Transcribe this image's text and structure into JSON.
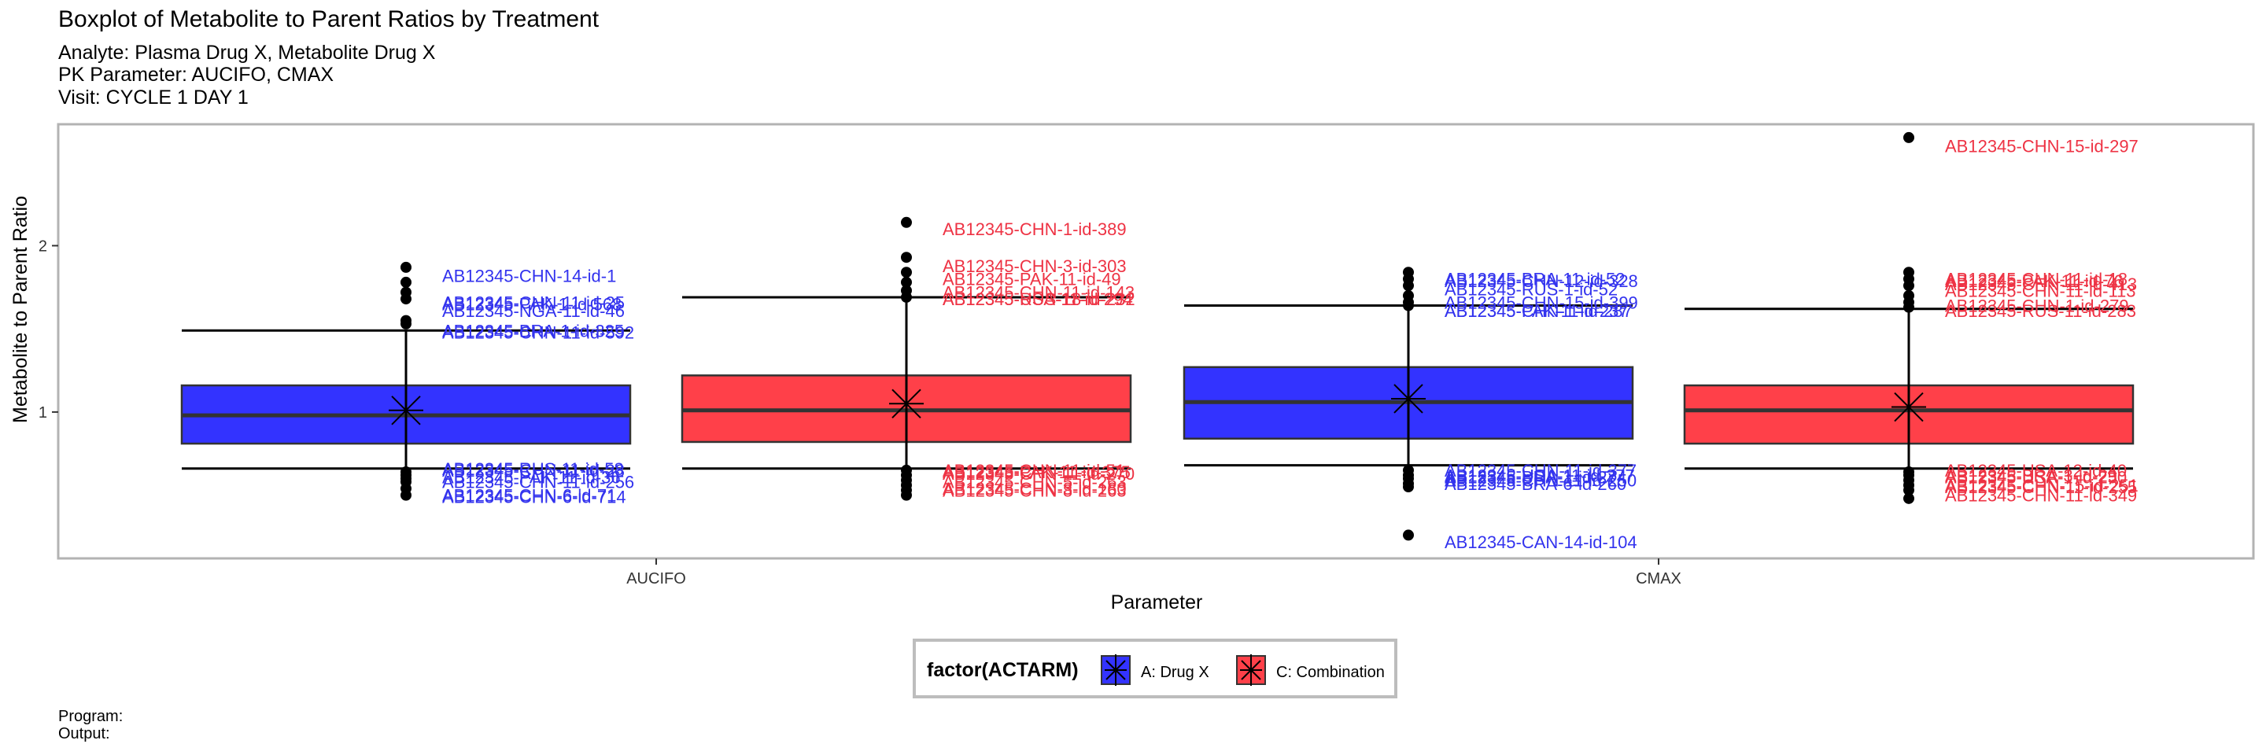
{
  "header": {
    "title": "Boxplot of Metabolite to Parent Ratios by Treatment",
    "subtitle_lines": [
      "Analyte: Plasma Drug X, Metabolite Drug X",
      "PK Parameter: AUCIFO, CMAX",
      "Visit: CYCLE 1 DAY 1"
    ]
  },
  "footer": {
    "program": "Program:",
    "output": "Output:"
  },
  "legend": {
    "title": "factor(ACTARM)",
    "entries": [
      {
        "label": "A: Drug X",
        "color": "#3333ff"
      },
      {
        "label": "C: Combination",
        "color": "#ff4049"
      }
    ]
  },
  "chart_data": {
    "type": "boxplot",
    "xlabel": "Parameter",
    "ylabel": "Metabolite to Parent Ratio",
    "categories": [
      "AUCIFO",
      "CMAX"
    ],
    "yticks": [
      1,
      2
    ],
    "ylim": [
      0.12,
      2.73
    ],
    "grid": false,
    "legend_position": "bottom",
    "colors": {
      "A: Drug X": "#3333ff",
      "C: Combination": "#ff4049",
      "label_blue": "#3333ee",
      "label_red": "#ee3344"
    },
    "boxes": [
      {
        "category": "AUCIFO",
        "series": "A: Drug X",
        "q1": 0.81,
        "median": 0.98,
        "q3": 1.16,
        "mean": 1.01,
        "whisker_low": 0.66,
        "whisker_high": 1.49,
        "outliers": [
          {
            "y": 1.87,
            "label": "AB12345-CHN-14-id-1",
            "ly": 1.82
          },
          {
            "y": 1.78,
            "label": "AB12345-CHN-11-id-25",
            "ly": 1.66
          },
          {
            "y": 1.72,
            "label": "AB12345-PAK-1-id-568",
            "ly": 1.65
          },
          {
            "y": 1.68,
            "label": "AB12345-NGA-11-id-46",
            "ly": 1.61
          },
          {
            "y": 1.55,
            "label": "AB12345-BRA-1-id-325",
            "ly": 1.49
          },
          {
            "y": 1.53,
            "label": "AB12345-CHN-11-id-592",
            "ly": 1.48
          },
          {
            "y": 0.64,
            "label": "AB12345-RUS-11-id-58",
            "ly": 0.66
          },
          {
            "y": 0.62,
            "label": "AB12345-CHN-11-id-28",
            "ly": 0.65
          },
          {
            "y": 0.6,
            "label": "AB12345-PAK-11-id-36",
            "ly": 0.61
          },
          {
            "y": 0.58,
            "label": "AB12345-CHN-11-id-256",
            "ly": 0.58
          },
          {
            "y": 0.54,
            "label": "AB12345-CHN-6-id-71",
            "ly": 0.5
          },
          {
            "y": 0.5,
            "label": "AB12345-CHN-6-id-714",
            "ly": 0.49
          }
        ]
      },
      {
        "category": "AUCIFO",
        "series": "C: Combination",
        "q1": 0.82,
        "median": 1.01,
        "q3": 1.22,
        "mean": 1.05,
        "whisker_low": 0.66,
        "whisker_high": 1.69,
        "outliers": [
          {
            "y": 2.14,
            "label": "AB12345-CHN-1-id-389",
            "ly": 2.1
          },
          {
            "y": 1.93,
            "label": "AB12345-CHN-3-id-303",
            "ly": 1.88
          },
          {
            "y": 1.84,
            "label": "AB12345-PAK-11-id-49",
            "ly": 1.8
          },
          {
            "y": 1.78,
            "label": "AB12345-CHN-11-id-143",
            "ly": 1.72
          },
          {
            "y": 1.73,
            "label": "AB12345-USA-11-id-294",
            "ly": 1.68
          },
          {
            "y": 1.69,
            "label": "AB12345-RUS-18-id-232",
            "ly": 1.68
          },
          {
            "y": 0.65,
            "label": "AB12345-CHN-11-id-51",
            "ly": 0.65
          },
          {
            "y": 0.62,
            "label": "AB12345-PAK-11-id-375",
            "ly": 0.64
          },
          {
            "y": 0.59,
            "label": "AB12345-CHN-11-id-270",
            "ly": 0.63
          },
          {
            "y": 0.56,
            "label": "AB12345-CHN-5-id-263",
            "ly": 0.58
          },
          {
            "y": 0.53,
            "label": "AB12345-CHN-3-id-160",
            "ly": 0.54
          },
          {
            "y": 0.5,
            "label": "AB12345-CHN-8-id-263",
            "ly": 0.53
          }
        ]
      },
      {
        "category": "CMAX",
        "series": "A: Drug X",
        "q1": 0.84,
        "median": 1.06,
        "q3": 1.27,
        "mean": 1.08,
        "whisker_low": 0.68,
        "whisker_high": 1.64,
        "outliers": [
          {
            "y": 1.84,
            "label": "AB12345-BRA-11-id-52",
            "ly": 1.8
          },
          {
            "y": 1.8,
            "label": "AB12345-CHN-12-id-328",
            "ly": 1.79
          },
          {
            "y": 1.76,
            "label": "AB12345-RUS-1-id-52",
            "ly": 1.74
          },
          {
            "y": 1.7,
            "label": "AB12345-CHN-15-id-399",
            "ly": 1.66
          },
          {
            "y": 1.66,
            "label": "AB12345-CHN-1-id-237",
            "ly": 1.61
          },
          {
            "y": 1.64,
            "label": "AB12345-PAK-11-id-287",
            "ly": 1.61
          },
          {
            "y": 0.65,
            "label": "AB12345-CHN-11-id-377",
            "ly": 0.65
          },
          {
            "y": 0.62,
            "label": "AB12345-USA-11-id-277",
            "ly": 0.62
          },
          {
            "y": 0.6,
            "label": "AB12345-BRA-1-id-274",
            "ly": 0.61
          },
          {
            "y": 0.57,
            "label": "AB12345-CHN-11-id-250",
            "ly": 0.59
          },
          {
            "y": 0.55,
            "label": "AB12345-BRA-6-id-260",
            "ly": 0.57
          },
          {
            "y": 0.26,
            "label": "AB12345-CAN-14-id-104",
            "ly": 0.22
          }
        ]
      },
      {
        "category": "CMAX",
        "series": "C: Combination",
        "q1": 0.81,
        "median": 1.01,
        "q3": 1.16,
        "mean": 1.03,
        "whisker_low": 0.66,
        "whisker_high": 1.62,
        "outliers": [
          {
            "y": 2.65,
            "label": "AB12345-CHN-15-id-297",
            "ly": 2.6
          },
          {
            "y": 1.84,
            "label": "AB12345-CHN-11-id-18",
            "ly": 1.8
          },
          {
            "y": 1.8,
            "label": "AB12345-PAK-11-id-76",
            "ly": 1.79
          },
          {
            "y": 1.76,
            "label": "AB12345-CHN-11-id-413",
            "ly": 1.77
          },
          {
            "y": 1.7,
            "label": "AB12345-CHN-11-id-113",
            "ly": 1.73
          },
          {
            "y": 1.66,
            "label": "AB12345-CHN-1-id-279",
            "ly": 1.64
          },
          {
            "y": 1.63,
            "label": "AB12345-RUS-11-id-283",
            "ly": 1.61
          },
          {
            "y": 0.64,
            "label": "AB12345-USA-12-id-40",
            "ly": 0.65
          },
          {
            "y": 0.62,
            "label": "AB12345-BRA-3-id-29",
            "ly": 0.62
          },
          {
            "y": 0.59,
            "label": "AB12345-USA-1-id-250",
            "ly": 0.61
          },
          {
            "y": 0.56,
            "label": "AB12345-CHN-15-id-251",
            "ly": 0.56
          },
          {
            "y": 0.53,
            "label": "AB12345-CHN-11-id-255",
            "ly": 0.55
          },
          {
            "y": 0.48,
            "label": "AB12345-CHN-11-id-349",
            "ly": 0.5
          }
        ]
      }
    ]
  }
}
